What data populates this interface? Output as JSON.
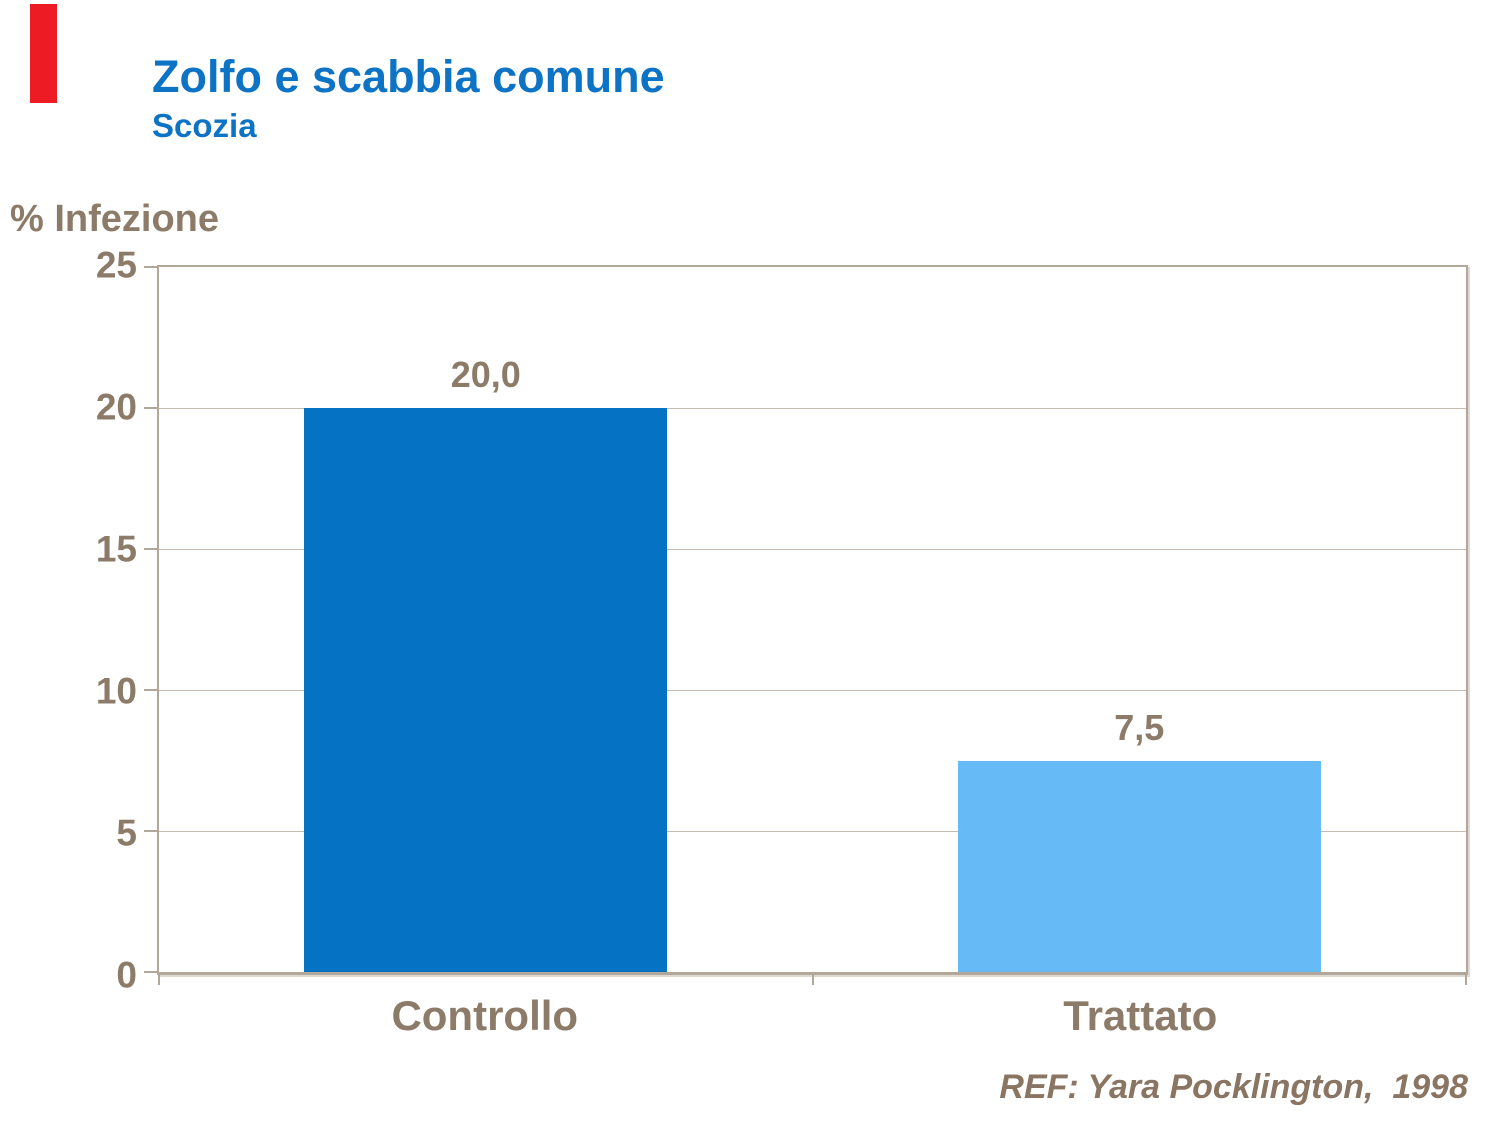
{
  "slide": {
    "title": "Zolfo e scabbia comune",
    "subtitle": "Scozia",
    "reference": "REF: Yara Pocklington,  1998"
  },
  "colors": {
    "accent-red": "#ED1C24",
    "title-blue": "#0D73C5",
    "bar-dark-blue": "#0572C4",
    "bar-light-blue": "#66BBF7",
    "label-brown": "#8C7B68",
    "axis-tan": "#B3A79A",
    "grid-tan": "#C7BBAF",
    "ref-brown": "#8A7563"
  },
  "chart_data": {
    "type": "bar",
    "title": "Zolfo e scabbia comune",
    "subtitle": "Scozia",
    "xlabel": "",
    "ylabel": "% Infezione",
    "categories": [
      "Controllo",
      "Trattato"
    ],
    "values": [
      20.0,
      7.5
    ],
    "bars": [
      {
        "category": "Controllo",
        "value": 20.0,
        "label": "20,0",
        "color_key": "bar-dark-blue"
      },
      {
        "category": "Trattato",
        "value": 7.5,
        "label": "7,5",
        "color_key": "bar-light-blue"
      }
    ],
    "ylim": [
      0,
      25
    ],
    "yticks": [
      0,
      5,
      10,
      15,
      20,
      25
    ],
    "ytick_labels": [
      "0",
      "5",
      "10",
      "15",
      "20",
      "25"
    ],
    "grid": true,
    "legend": false,
    "bar_width_fraction": 0.278,
    "annotation": "REF: Yara Pocklington, 1998"
  }
}
